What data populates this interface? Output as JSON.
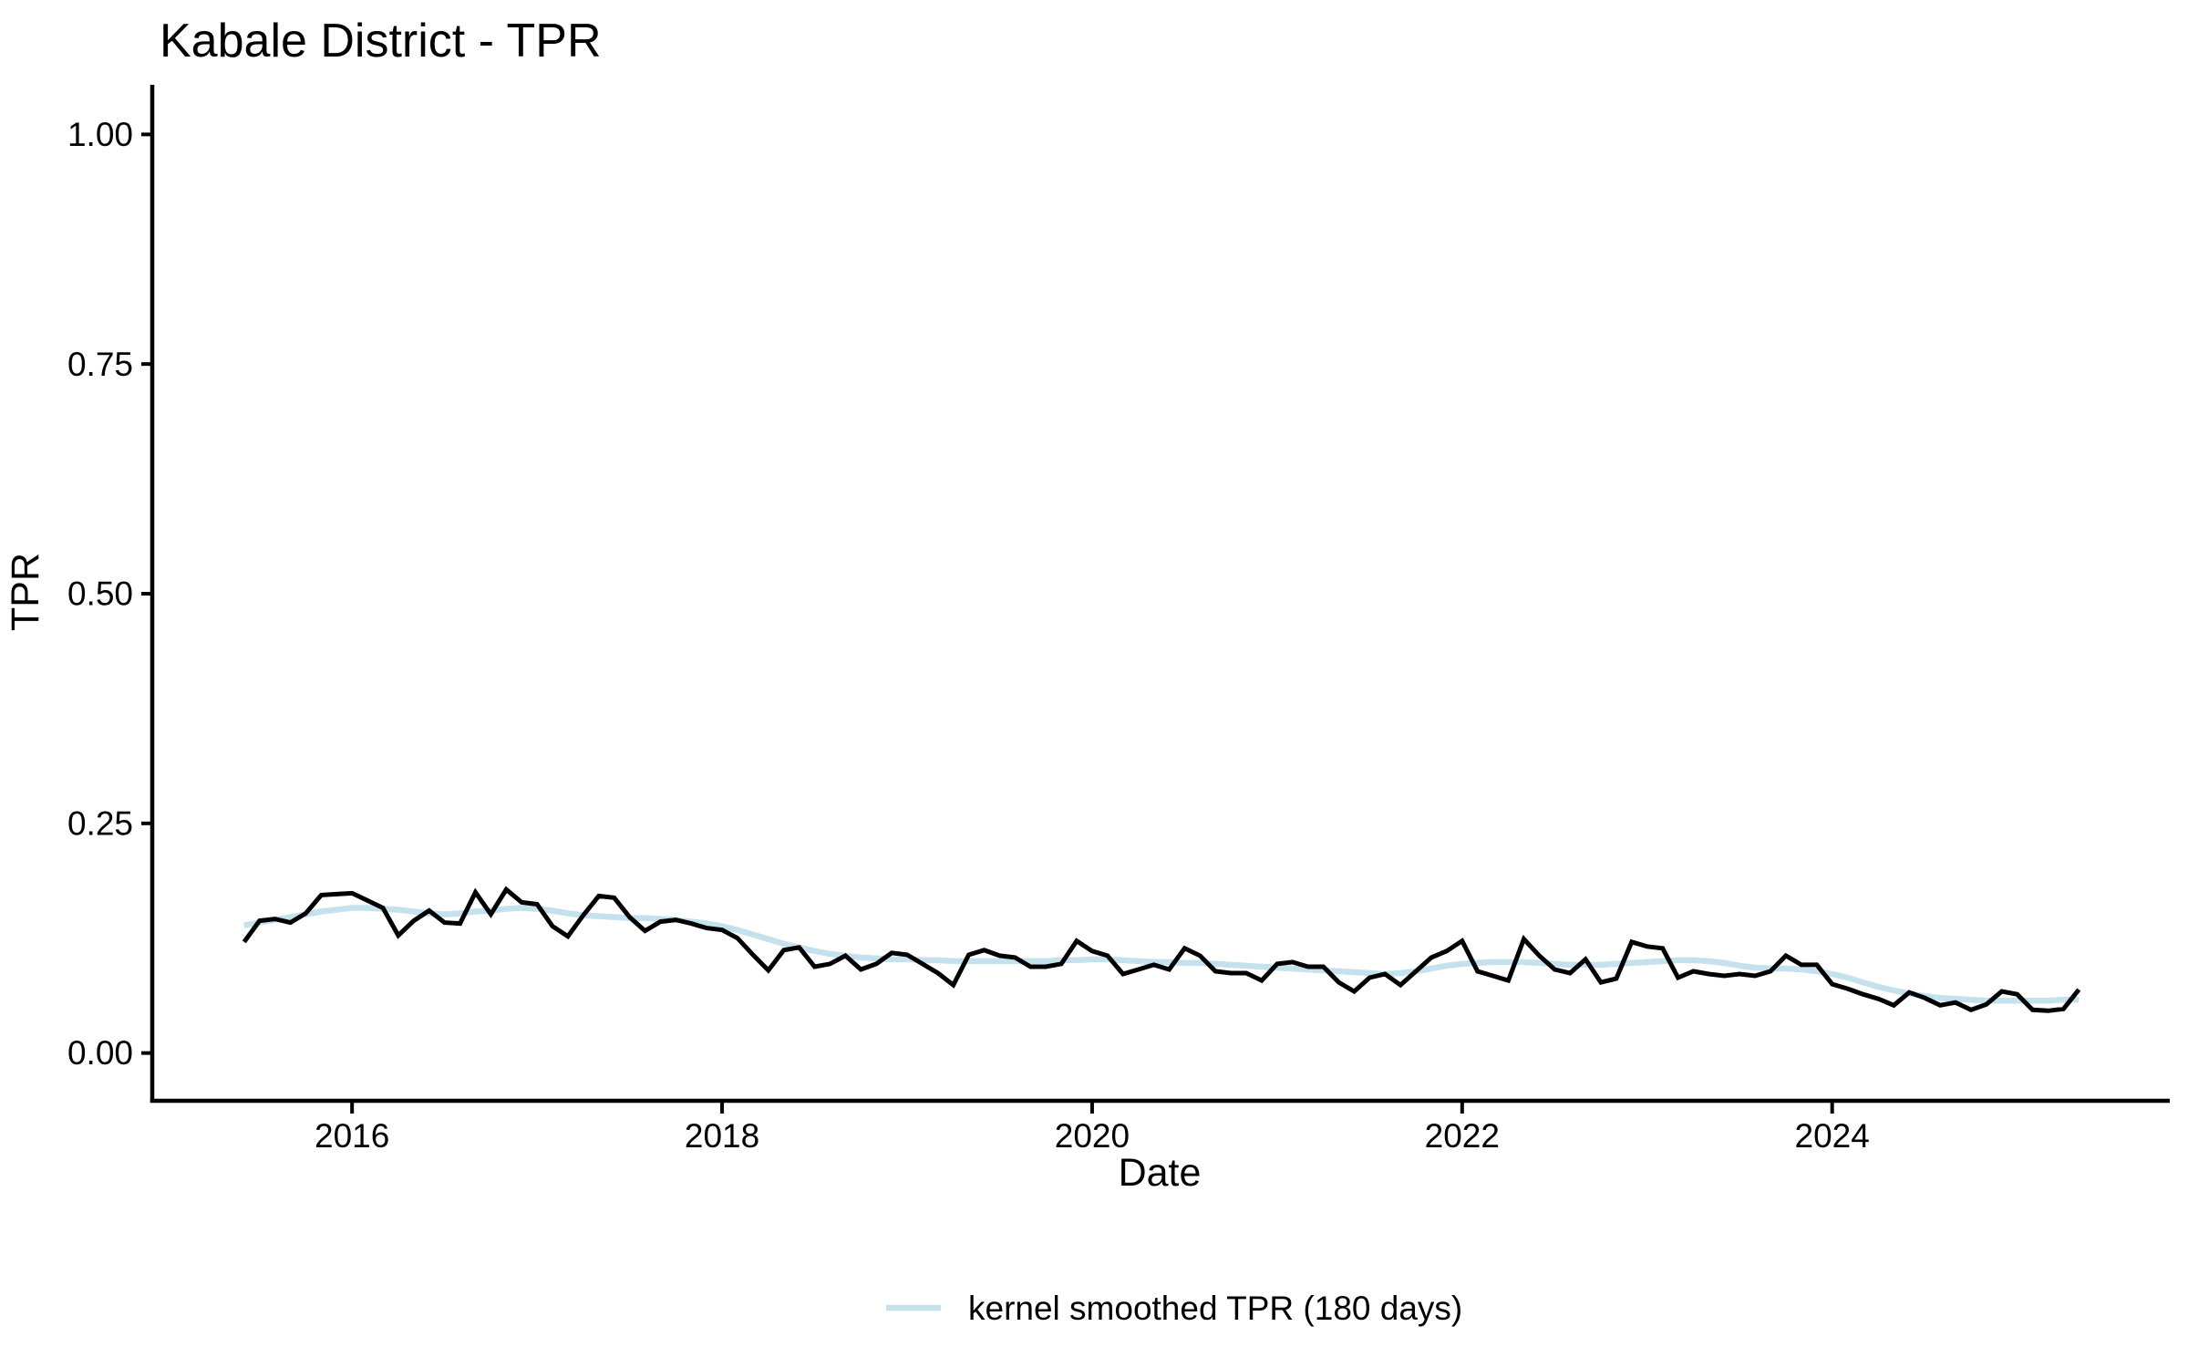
{
  "chart_data": {
    "type": "line",
    "title": "Kabale District - TPR",
    "xlabel": "Date",
    "ylabel": "TPR",
    "x_ticks": [
      2016,
      2018,
      2020,
      2022,
      2024
    ],
    "x_tick_labels": [
      "2016",
      "2018",
      "2020",
      "2022",
      "2024"
    ],
    "y_ticks": [
      0,
      0.25,
      0.5,
      0.75,
      1
    ],
    "y_tick_labels": [
      "0.00",
      "0.25",
      "0.50",
      "0.75",
      "1.00"
    ],
    "xlim": [
      2014.92,
      2025.81
    ],
    "ylim": [
      -0.05,
      1.05
    ],
    "grid": false,
    "legend_position": "bottom-center",
    "x_start": "2015-06",
    "x_end": "2025-05",
    "x_interval": "monthly",
    "series": [
      {
        "name": "kernel smoothed TPR (180 days)",
        "color": "#C4E1ED",
        "line_width": 6.5,
        "in_legend": true,
        "values": [
          0.139,
          0.142,
          0.145,
          0.148,
          0.151,
          0.154,
          0.156,
          0.158,
          0.158,
          0.157,
          0.156,
          0.154,
          0.152,
          0.151,
          0.152,
          0.154,
          0.155,
          0.157,
          0.158,
          0.157,
          0.155,
          0.152,
          0.15,
          0.149,
          0.148,
          0.147,
          0.147,
          0.146,
          0.145,
          0.143,
          0.141,
          0.138,
          0.134,
          0.129,
          0.124,
          0.119,
          0.115,
          0.111,
          0.108,
          0.106,
          0.104,
          0.103,
          0.102,
          0.102,
          0.101,
          0.101,
          0.1,
          0.1,
          0.1,
          0.1,
          0.1,
          0.1,
          0.1,
          0.101,
          0.101,
          0.102,
          0.102,
          0.101,
          0.1,
          0.099,
          0.099,
          0.098,
          0.098,
          0.097,
          0.096,
          0.095,
          0.094,
          0.093,
          0.092,
          0.091,
          0.09,
          0.089,
          0.088,
          0.087,
          0.086,
          0.087,
          0.089,
          0.092,
          0.095,
          0.097,
          0.098,
          0.099,
          0.099,
          0.099,
          0.098,
          0.097,
          0.096,
          0.096,
          0.096,
          0.097,
          0.098,
          0.099,
          0.1,
          0.101,
          0.101,
          0.1,
          0.098,
          0.095,
          0.093,
          0.092,
          0.092,
          0.091,
          0.089,
          0.086,
          0.082,
          0.077,
          0.072,
          0.068,
          0.065,
          0.062,
          0.06,
          0.059,
          0.058,
          0.057,
          0.057,
          0.057,
          0.057,
          0.057,
          0.058,
          0.058
        ]
      },
      {
        "name": "TPR",
        "color": "#000000",
        "line_width": 5,
        "in_legend": false,
        "values": [
          0.121,
          0.144,
          0.146,
          0.142,
          0.152,
          0.172,
          0.173,
          0.174,
          0.166,
          0.158,
          0.128,
          0.144,
          0.155,
          0.142,
          0.141,
          0.175,
          0.151,
          0.178,
          0.164,
          0.162,
          0.138,
          0.127,
          0.15,
          0.171,
          0.169,
          0.148,
          0.133,
          0.143,
          0.145,
          0.141,
          0.136,
          0.134,
          0.125,
          0.107,
          0.09,
          0.112,
          0.115,
          0.094,
          0.097,
          0.106,
          0.091,
          0.097,
          0.109,
          0.107,
          0.097,
          0.087,
          0.074,
          0.107,
          0.112,
          0.106,
          0.104,
          0.094,
          0.094,
          0.097,
          0.122,
          0.111,
          0.106,
          0.086,
          0.091,
          0.096,
          0.091,
          0.114,
          0.106,
          0.089,
          0.087,
          0.087,
          0.079,
          0.097,
          0.099,
          0.094,
          0.094,
          0.077,
          0.067,
          0.082,
          0.086,
          0.074,
          0.089,
          0.104,
          0.111,
          0.122,
          0.089,
          0.084,
          0.079,
          0.124,
          0.106,
          0.091,
          0.087,
          0.102,
          0.077,
          0.081,
          0.121,
          0.116,
          0.114,
          0.082,
          0.089,
          0.086,
          0.084,
          0.086,
          0.084,
          0.089,
          0.106,
          0.096,
          0.096,
          0.075,
          0.07,
          0.064,
          0.059,
          0.052,
          0.066,
          0.06,
          0.052,
          0.055,
          0.047,
          0.053,
          0.067,
          0.064,
          0.047,
          0.046,
          0.048,
          0.069
        ]
      }
    ],
    "legend": {
      "label": "kernel smoothed TPR (180 days)",
      "swatch_color": "#C4E1ED"
    }
  }
}
